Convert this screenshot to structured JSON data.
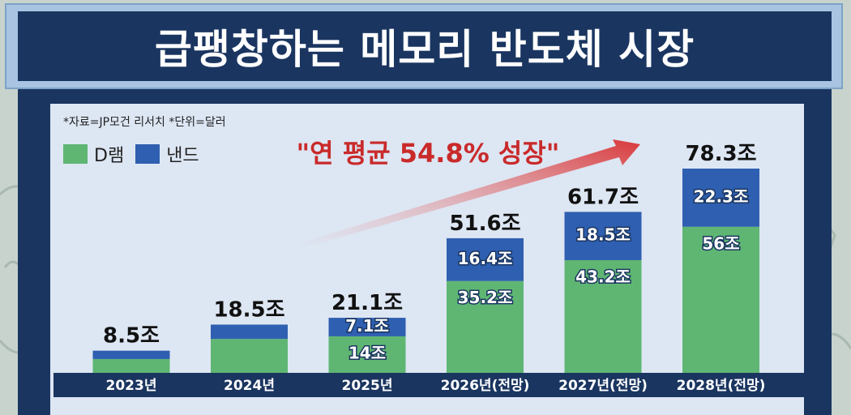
{
  "title": "급팽창하는 메모리 반도체 시장",
  "source_note": "*자료=JP모건 리서치 *단위=달러",
  "callout": "\"연 평균 54.8% 성장\"",
  "colors": {
    "dram": "#5fb673",
    "nand": "#2f5fb0",
    "navy": "#1a3560",
    "callout": "#c92a2a"
  },
  "chart_data": {
    "type": "bar",
    "stacked": true,
    "categories": [
      "2023년",
      "2024년",
      "2025년",
      "2026년(전망)",
      "2027년(전망)",
      "2028년(전망)"
    ],
    "series": [
      {
        "name": "D램",
        "values": [
          5.3,
          13.0,
          14,
          35.2,
          43.2,
          56
        ],
        "labels": [
          "",
          "",
          "14조",
          "35.2조",
          "43.2조",
          "56조"
        ]
      },
      {
        "name": "낸드",
        "values": [
          3.2,
          5.5,
          7.1,
          16.4,
          18.5,
          22.3
        ],
        "labels": [
          "",
          "",
          "7.1조",
          "16.4조",
          "18.5조",
          "22.3조"
        ]
      }
    ],
    "totals": [
      "8.5조",
      "18.5조",
      "21.1조",
      "51.6조",
      "61.7조",
      "78.3조"
    ],
    "total_values": [
      8.5,
      18.5,
      21.1,
      51.6,
      61.7,
      78.3
    ],
    "ylim": [
      0,
      80
    ]
  }
}
